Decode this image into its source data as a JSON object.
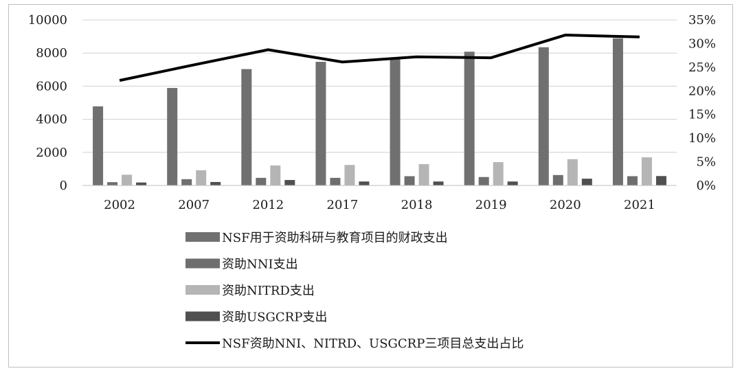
{
  "chart_data": {
    "type": "bar",
    "categories": [
      "2002",
      "2007",
      "2012",
      "2017",
      "2018",
      "2019",
      "2020",
      "2021"
    ],
    "series": [
      {
        "name": "NSF用于资助科研与教育项目的财政支出",
        "type": "bar",
        "axis": "left",
        "color": "#707070",
        "values": [
          4780,
          5890,
          7030,
          7470,
          7720,
          8080,
          8350,
          8890
        ]
      },
      {
        "name": "资助NNI支出",
        "type": "bar",
        "axis": "left",
        "color": "#6e6e6e",
        "values": [
          200,
          380,
          460,
          460,
          560,
          510,
          630,
          560
        ]
      },
      {
        "name": "资助NITRD支出",
        "type": "bar",
        "axis": "left",
        "color": "#b5b5b5",
        "values": [
          650,
          920,
          1210,
          1240,
          1290,
          1410,
          1590,
          1700
        ]
      },
      {
        "name": "资助USGCRP支出",
        "type": "bar",
        "axis": "left",
        "color": "#505050",
        "values": [
          180,
          210,
          330,
          240,
          240,
          240,
          410,
          570
        ]
      },
      {
        "name": "NSF资助NNI、NITRD、USGCRP三项目总支出占比",
        "type": "line",
        "axis": "right",
        "color": "#000000",
        "values": [
          22.2,
          25.5,
          28.7,
          26.1,
          27.2,
          27.0,
          31.8,
          31.4
        ]
      }
    ],
    "ylim_left": [
      0,
      10000
    ],
    "yticks_left": [
      "0",
      "2000",
      "4000",
      "6000",
      "8000",
      "10000"
    ],
    "ylim_right": [
      0,
      35
    ],
    "yticks_right": [
      "0%",
      "5%",
      "10%",
      "15%",
      "20%",
      "25%",
      "30%",
      "35%"
    ],
    "grid": true,
    "legend_position": "bottom"
  }
}
